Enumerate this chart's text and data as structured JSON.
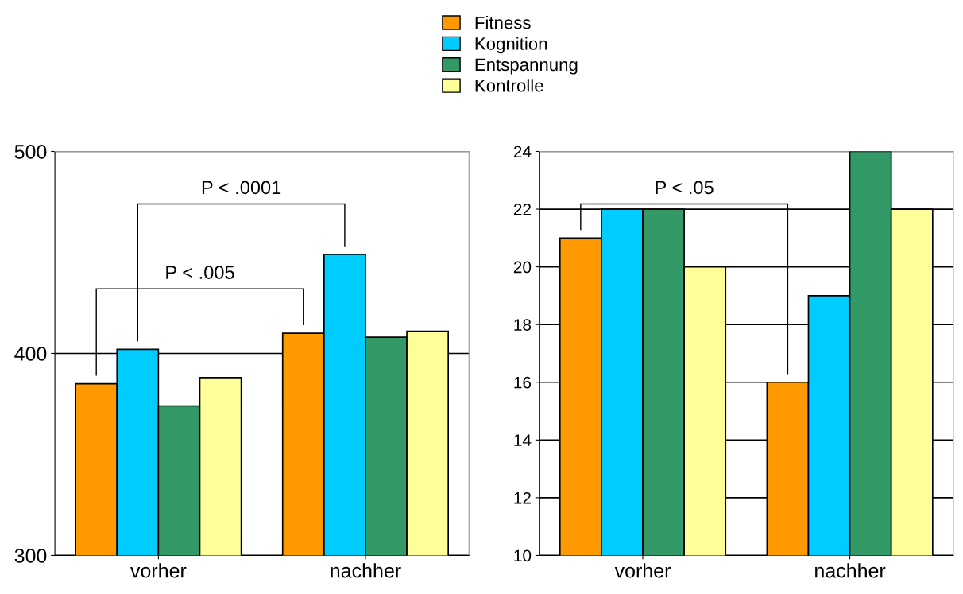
{
  "chart_data": [
    {
      "type": "bar",
      "categories": [
        "vorher",
        "nachher"
      ],
      "series": [
        {
          "name": "Fitness",
          "color": "#ff9900",
          "values": [
            385,
            410
          ]
        },
        {
          "name": "Kognition",
          "color": "#00ccff",
          "values": [
            402,
            449
          ]
        },
        {
          "name": "Entspannung",
          "color": "#339966",
          "values": [
            374,
            408
          ]
        },
        {
          "name": "Kontrolle",
          "color": "#ffff99",
          "values": [
            388,
            411
          ]
        }
      ],
      "ylim": [
        300,
        500
      ],
      "yticks": [
        300,
        400,
        500
      ],
      "grid": "y",
      "legend": "top",
      "annotations": [
        "P < .005",
        "P < .0001"
      ]
    },
    {
      "type": "bar",
      "categories": [
        "vorher",
        "nachher"
      ],
      "series": [
        {
          "color": "#ff9900",
          "values": [
            21,
            16
          ]
        },
        {
          "color": "#00ccff",
          "values": [
            22,
            19
          ]
        },
        {
          "color": "#339966",
          "values": [
            22,
            24
          ]
        },
        {
          "color": "#ffff99",
          "values": [
            20,
            22
          ]
        }
      ],
      "ylim": [
        10,
        24
      ],
      "yticks": [
        10,
        12,
        14,
        16,
        18,
        20,
        22,
        24
      ],
      "grid": "y",
      "annotations": [
        "P < .05"
      ]
    }
  ]
}
